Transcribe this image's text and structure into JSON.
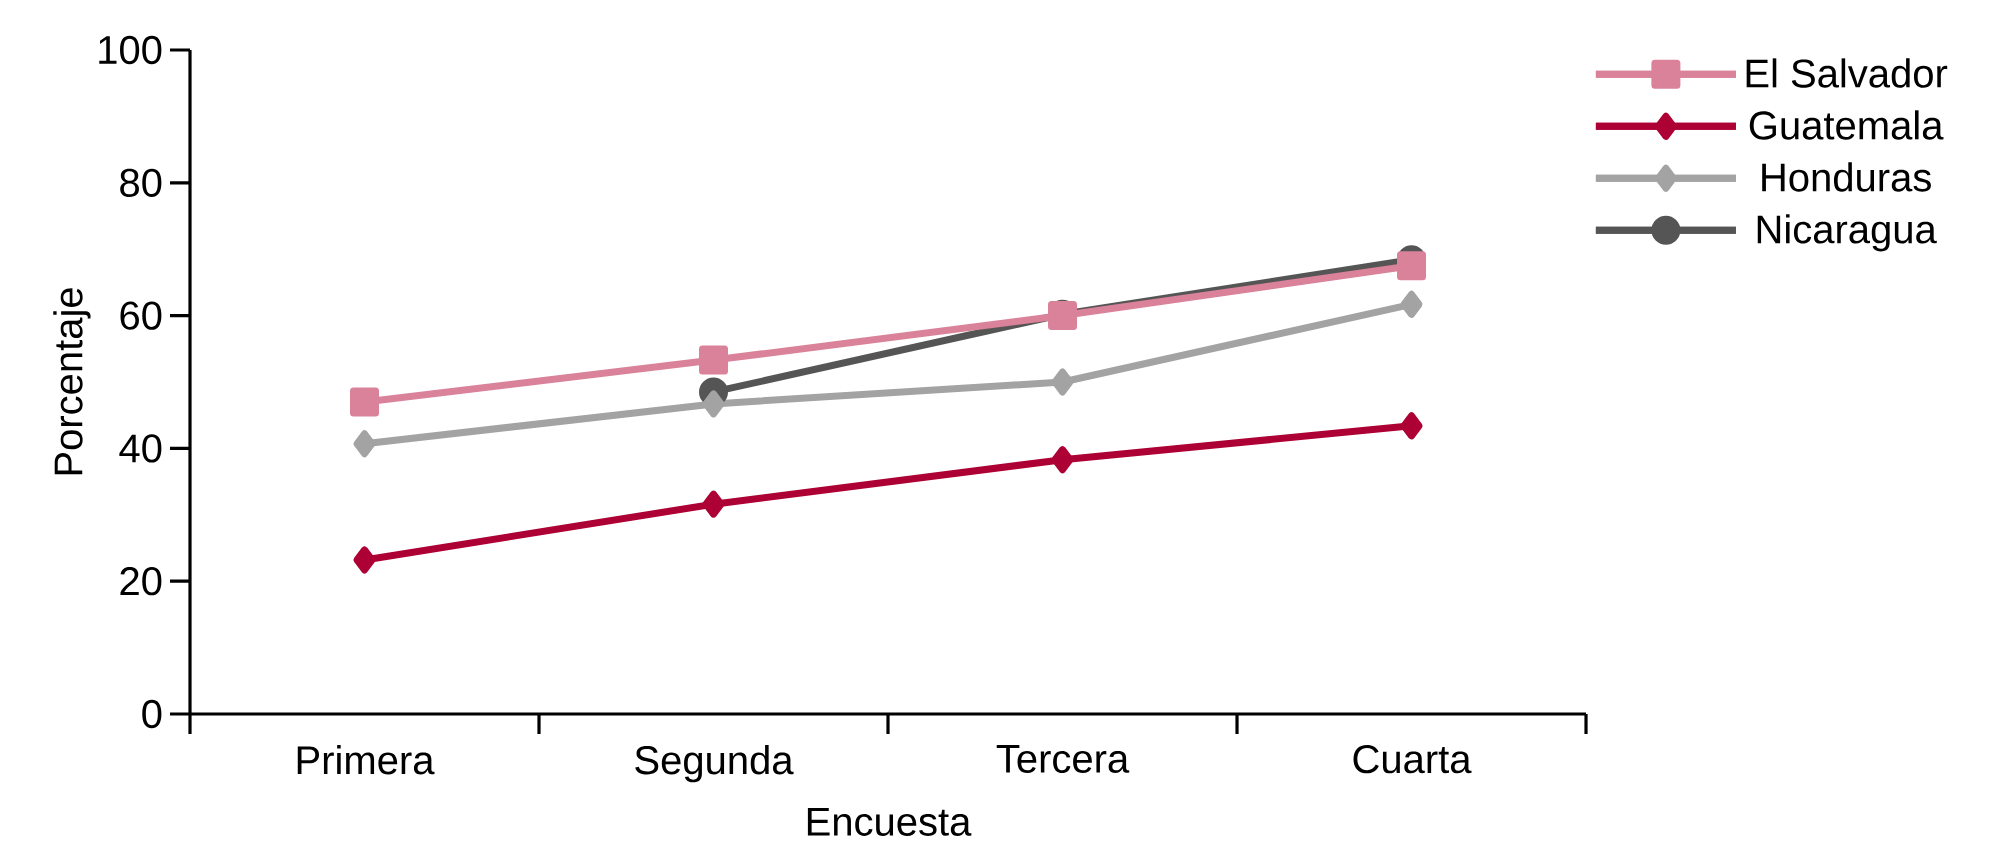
{
  "chart_data": {
    "type": "line",
    "xlabel": "Encuesta",
    "ylabel": "Porcentaje",
    "categories": [
      "Primera",
      "Segunda",
      "Tercera",
      "Cuarta"
    ],
    "ylim": [
      0,
      100
    ],
    "yticks": [
      0,
      20,
      40,
      60,
      80,
      100
    ],
    "grid": false,
    "legend": "top right",
    "line_style": "solid",
    "series": [
      {
        "name": "El Salvador",
        "color": "#d98299",
        "marker": "square",
        "values": [
          47,
          53.3,
          60,
          67.5
        ]
      },
      {
        "name": "Guatemala",
        "color": "#ad0034",
        "marker": "diamond",
        "values": [
          23.2,
          31.6,
          38.3,
          43.4
        ]
      },
      {
        "name": "Honduras",
        "color": "#a3a3a3",
        "marker": "diamond",
        "values": [
          40.7,
          46.7,
          50,
          61.7
        ]
      },
      {
        "name": "Nicaragua",
        "color": "#555555",
        "marker": "circle",
        "values": [
          null,
          48.5,
          60.2,
          68.4
        ]
      }
    ]
  }
}
